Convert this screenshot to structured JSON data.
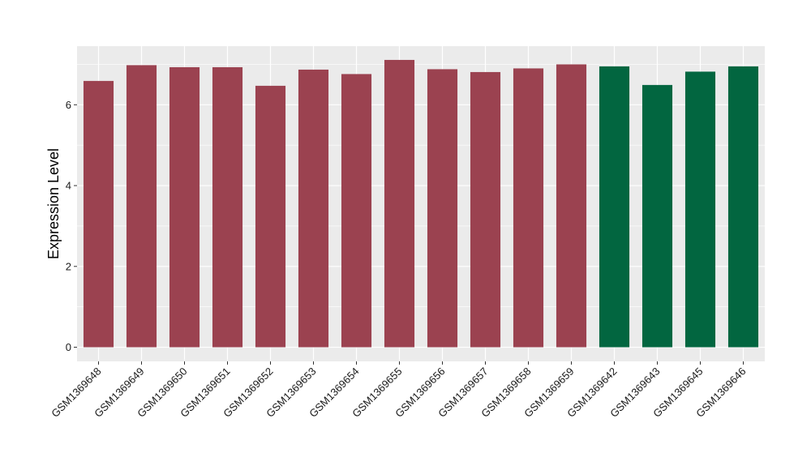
{
  "chart_data": {
    "type": "bar",
    "title": "",
    "xlabel": "",
    "ylabel": "Expression Level",
    "ylim": [
      -0.35,
      7.45
    ],
    "y_ticks": [
      0,
      2,
      4,
      6
    ],
    "grid": true,
    "legend": "none",
    "categories": [
      "GSM1369648",
      "GSM1369649",
      "GSM1369650",
      "GSM1369651",
      "GSM1369652",
      "GSM1369653",
      "GSM1369654",
      "GSM1369655",
      "GSM1369656",
      "GSM1369657",
      "GSM1369658",
      "GSM1369659",
      "GSM1369642",
      "GSM1369643",
      "GSM1369645",
      "GSM1369646"
    ],
    "values": [
      6.59,
      6.98,
      6.93,
      6.93,
      6.47,
      6.87,
      6.76,
      7.11,
      6.88,
      6.81,
      6.9,
      7.0,
      6.95,
      6.49,
      6.82,
      6.95
    ],
    "groups": [
      0,
      0,
      0,
      0,
      0,
      0,
      0,
      0,
      0,
      0,
      0,
      0,
      1,
      1,
      1,
      1
    ],
    "group_colors": [
      "#9b4250",
      "#026640"
    ],
    "panel_color": "#ebebeb",
    "grid_color": "#ffffff"
  }
}
